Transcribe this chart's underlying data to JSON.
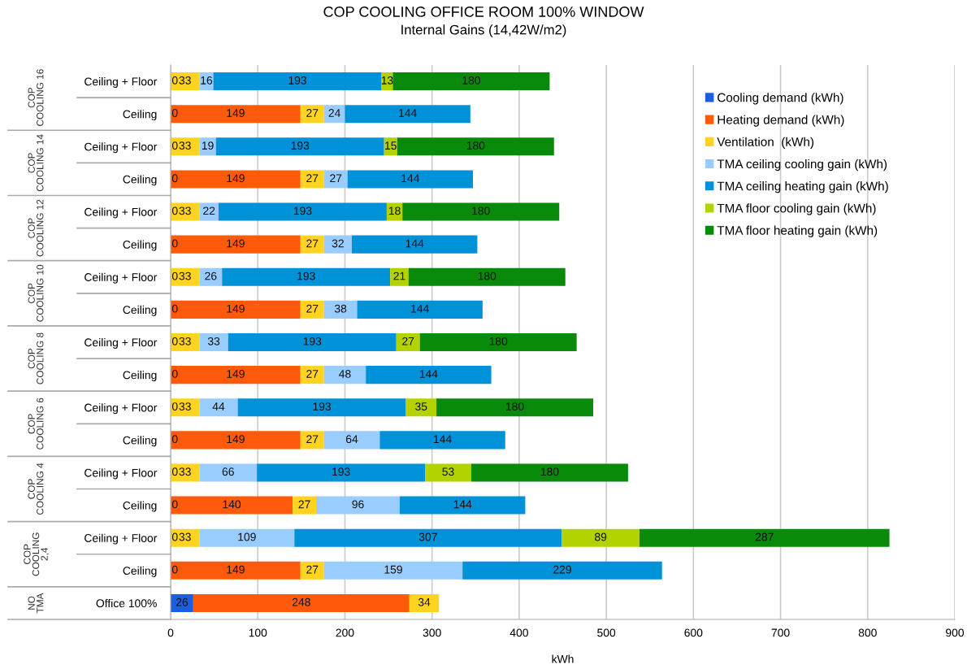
{
  "chart_data": {
    "type": "bar",
    "orientation": "horizontal",
    "stacked": true,
    "data_labels": true,
    "title": "COP COOLING OFFICE ROOM 100% WINDOW",
    "subtitle": "Internal Gains (14,42W/m2)",
    "xlabel": "kWh",
    "categories": [
      "Ceiling + Floor",
      "Ceiling",
      "Ceiling + Floor",
      "Ceiling",
      "Ceiling + Floor",
      "Ceiling",
      "Ceiling + Floor",
      "Ceiling",
      "Ceiling + Floor",
      "Ceiling",
      "Ceiling + Floor",
      "Ceiling",
      "Ceiling + Floor",
      "Ceiling",
      "Ceiling + Floor",
      "Ceiling",
      "Office 100%"
    ],
    "annotations": [
      "COP\nCOOLING 16",
      "COP\nCOOLING 14",
      "COP\nCOOLING 12",
      "COP\nCOOLING 10",
      "COP\nCOOLING 8",
      "COP\nCOOLING 6",
      "COP\nCOOLING 4",
      "COP\nCOOLING\n2,4",
      "NO\nTMA"
    ],
    "series": [
      {
        "name": "Cooling demand (kWh)",
        "color": "#1a5fe0",
        "values": [
          0,
          0,
          0,
          0,
          0,
          0,
          0,
          0,
          0,
          0,
          0,
          0,
          0,
          0,
          0,
          0,
          26
        ]
      },
      {
        "name": "Heating demand (kWh)",
        "color": "#ff5a0a",
        "values": [
          null,
          149,
          null,
          149,
          null,
          149,
          null,
          149,
          null,
          149,
          null,
          149,
          null,
          140,
          null,
          149,
          248
        ]
      },
      {
        "name": "Ventilation  (kWh)",
        "color": "#ffd320",
        "values": [
          33,
          27,
          33,
          27,
          33,
          27,
          33,
          27,
          33,
          27,
          33,
          27,
          33,
          27,
          33,
          27,
          34
        ]
      },
      {
        "name": "TMA ceiling cooling gain (kWh)",
        "color": "#99ccff",
        "values": [
          16,
          24,
          19,
          27,
          22,
          32,
          26,
          38,
          33,
          48,
          44,
          64,
          66,
          96,
          109,
          159,
          null
        ]
      },
      {
        "name": "TMA ceiling heating gain (kWh)",
        "color": "#0092d8",
        "values": [
          193,
          144,
          193,
          144,
          193,
          144,
          193,
          144,
          193,
          144,
          193,
          144,
          193,
          144,
          307,
          229,
          null
        ]
      },
      {
        "name": "TMA floor cooling gain (kWh)",
        "color": "#b4d200",
        "values": [
          13,
          null,
          15,
          null,
          18,
          null,
          21,
          null,
          27,
          null,
          35,
          null,
          53,
          null,
          89,
          null,
          null
        ]
      },
      {
        "name": "TMA floor heating gain (kWh)",
        "color": "#0a8a0a",
        "values": [
          180,
          null,
          180,
          null,
          180,
          null,
          180,
          null,
          180,
          null,
          180,
          null,
          180,
          null,
          287,
          null,
          null
        ]
      }
    ],
    "xlim": [
      0,
      900
    ],
    "xticks": [
      0,
      100,
      200,
      300,
      400,
      500,
      600,
      700,
      800,
      900
    ],
    "grid": "x",
    "legend": "top right"
  }
}
